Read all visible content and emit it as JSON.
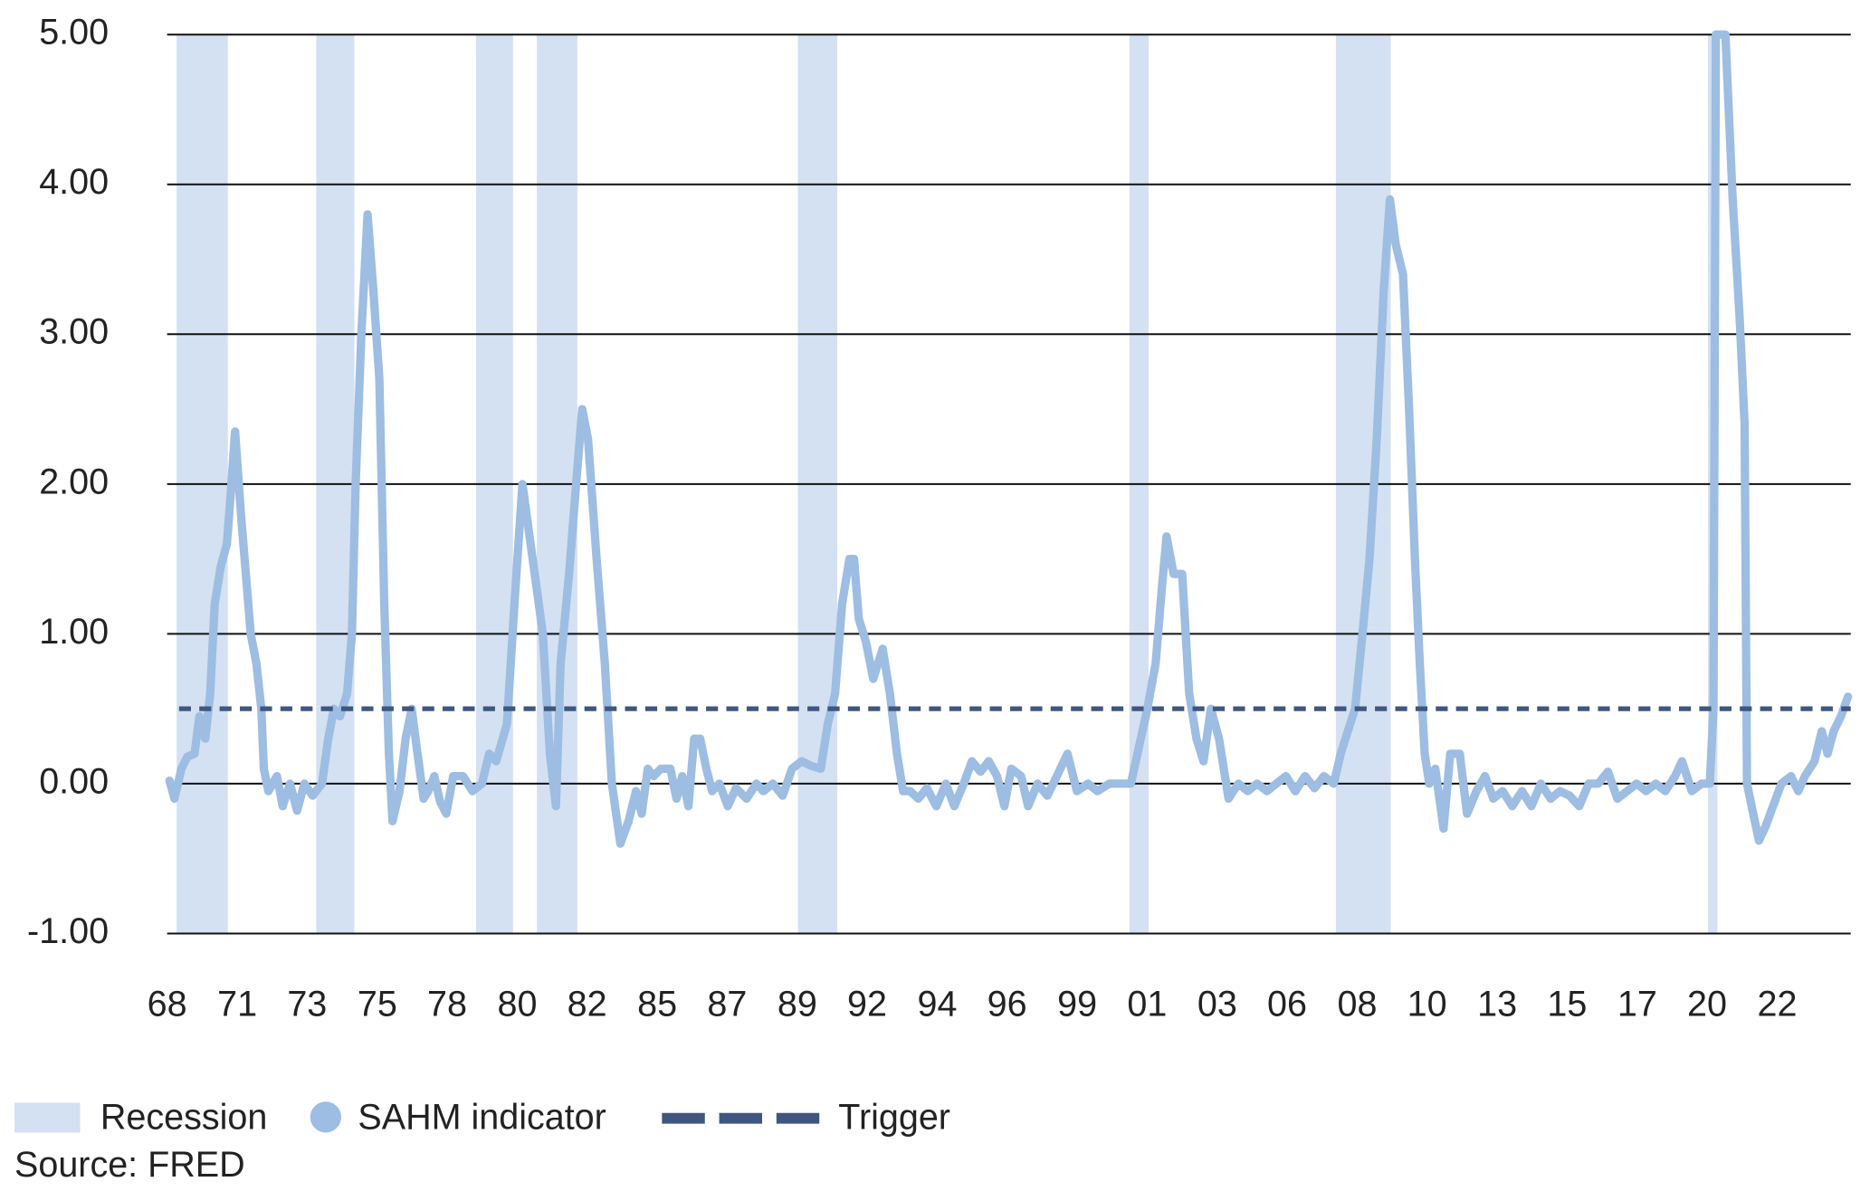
{
  "chart_data": {
    "type": "line",
    "source": "Source: FRED",
    "xlim": [
      1969.6,
      2024.8
    ],
    "ylim": [
      -1,
      5
    ],
    "yticks": [
      {
        "value": -1,
        "label": "-1.00"
      },
      {
        "value": 0,
        "label": "0.00"
      },
      {
        "value": 1,
        "label": "1.00"
      },
      {
        "value": 2,
        "label": "2.00"
      },
      {
        "value": 3,
        "label": "3.00"
      },
      {
        "value": 4,
        "label": "4.00"
      },
      {
        "value": 5,
        "label": "5.00"
      }
    ],
    "xticks": [
      {
        "value": 1969.6,
        "label": "68"
      },
      {
        "value": 1971.9,
        "label": "71"
      },
      {
        "value": 1974.19,
        "label": "73"
      },
      {
        "value": 1976.49,
        "label": "75"
      },
      {
        "value": 1978.78,
        "label": "78"
      },
      {
        "value": 1981.08,
        "label": "80"
      },
      {
        "value": 1983.37,
        "label": "82"
      },
      {
        "value": 1985.67,
        "label": "85"
      },
      {
        "value": 1987.96,
        "label": "87"
      },
      {
        "value": 1990.26,
        "label": "89"
      },
      {
        "value": 1992.55,
        "label": "92"
      },
      {
        "value": 1994.85,
        "label": "94"
      },
      {
        "value": 1997.14,
        "label": "96"
      },
      {
        "value": 1999.44,
        "label": "99"
      },
      {
        "value": 2001.73,
        "label": "01"
      },
      {
        "value": 2004.03,
        "label": "03"
      },
      {
        "value": 2006.32,
        "label": "06"
      },
      {
        "value": 2008.62,
        "label": "08"
      },
      {
        "value": 2010.91,
        "label": "10"
      },
      {
        "value": 2013.21,
        "label": "13"
      },
      {
        "value": 2015.5,
        "label": "15"
      },
      {
        "value": 2017.8,
        "label": "17"
      },
      {
        "value": 2020.09,
        "label": "20"
      },
      {
        "value": 2022.39,
        "label": "22"
      }
    ],
    "grid": true,
    "recession": {
      "name": "Recession",
      "color": "#d4e1f2",
      "periods": [
        [
          1969.91,
          1971.59
        ],
        [
          1974.49,
          1975.74
        ],
        [
          1979.73,
          1980.94
        ],
        [
          1981.72,
          1983.05
        ],
        [
          1990.28,
          1991.57
        ],
        [
          2001.15,
          2001.78
        ],
        [
          2007.92,
          2009.72
        ],
        [
          2020.12,
          2020.43
        ]
      ]
    },
    "trigger": {
      "name": "Trigger",
      "value": 0.5,
      "color": "#3f5680"
    },
    "x": [
      1969.68,
      1969.84,
      1970.07,
      1970.26,
      1970.5,
      1970.66,
      1970.85,
      1971.01,
      1971.16,
      1971.36,
      1971.56,
      1971.67,
      1971.83,
      1972.02,
      1972.18,
      1972.34,
      1972.53,
      1972.69,
      1972.77,
      1972.92,
      1973.2,
      1973.39,
      1973.63,
      1973.86,
      1974.1,
      1974.37,
      1974.68,
      1974.88,
      1975.07,
      1975.27,
      1975.5,
      1975.66,
      1975.78,
      1975.97,
      1976.17,
      1976.36,
      1976.56,
      1976.72,
      1976.87,
      1976.99,
      1977.22,
      1977.42,
      1977.62,
      1977.81,
      1978.01,
      1978.16,
      1978.36,
      1978.55,
      1978.75,
      1978.98,
      1979.3,
      1979.61,
      1979.92,
      1980.16,
      1980.39,
      1980.74,
      1981.02,
      1981.25,
      1981.45,
      1981.72,
      1981.92,
      1982.15,
      1982.35,
      1982.5,
      1982.78,
      1983.01,
      1983.21,
      1983.4,
      1983.68,
      1983.95,
      1984.18,
      1984.46,
      1984.73,
      1984.97,
      1985.16,
      1985.36,
      1985.55,
      1985.79,
      1986.1,
      1986.3,
      1986.49,
      1986.69,
      1986.88,
      1987.08,
      1987.28,
      1987.47,
      1987.71,
      1987.98,
      1988.25,
      1988.6,
      1988.92,
      1989.15,
      1989.46,
      1989.78,
      1990.09,
      1990.4,
      1990.71,
      1991.03,
      1991.26,
      1991.5,
      1991.73,
      1991.97,
      1992.12,
      1992.28,
      1992.51,
      1992.75,
      1993.06,
      1993.3,
      1993.53,
      1993.73,
      1993.96,
      1994.23,
      1994.51,
      1994.82,
      1995.13,
      1995.41,
      1995.72,
      1995.99,
      1996.27,
      1996.54,
      1996.81,
      1997.05,
      1997.28,
      1997.6,
      1997.83,
      1998.14,
      1998.46,
      1998.77,
      1999.12,
      1999.43,
      1999.79,
      2000.1,
      2000.49,
      2000.88,
      2001.2,
      2001.47,
      2001.74,
      2002.01,
      2002.21,
      2002.37,
      2002.6,
      2002.88,
      2003.11,
      2003.35,
      2003.58,
      2003.82,
      2004.09,
      2004.4,
      2004.72,
      2005.03,
      2005.34,
      2005.66,
      2005.97,
      2006.28,
      2006.59,
      2006.91,
      2007.22,
      2007.53,
      2007.85,
      2008.08,
      2008.31,
      2008.55,
      2008.79,
      2009.02,
      2009.26,
      2009.49,
      2009.69,
      2009.88,
      2010.12,
      2010.32,
      2010.51,
      2010.67,
      2010.83,
      2010.98,
      2011.18,
      2011.45,
      2011.67,
      2011.98,
      2012.22,
      2012.53,
      2012.81,
      2013.08,
      2013.39,
      2013.7,
      2014.02,
      2014.33,
      2014.64,
      2014.96,
      2015.27,
      2015.58,
      2015.9,
      2016.21,
      2016.52,
      2016.84,
      2017.15,
      2017.47,
      2017.78,
      2018.09,
      2018.41,
      2018.72,
      2019.04,
      2019.27,
      2019.59,
      2019.91,
      2020.18,
      2020.3,
      2020.38,
      2020.69,
      2020.93,
      2021.16,
      2021.32,
      2021.4,
      2021.55,
      2021.79,
      2022.02,
      2022.25,
      2022.53,
      2022.84,
      2023.08,
      2023.3,
      2023.61,
      2023.85,
      2024.04,
      2024.24,
      2024.48,
      2024.71
    ],
    "series": [
      {
        "name": "SAHM indicator",
        "color": "#9dbde2",
        "values": [
          0.02,
          -0.1,
          0.1,
          0.18,
          0.2,
          0.45,
          0.3,
          0.6,
          1.2,
          1.45,
          1.6,
          1.9,
          2.35,
          1.8,
          1.4,
          1.0,
          0.8,
          0.5,
          0.1,
          -0.05,
          0.05,
          -0.15,
          0.0,
          -0.18,
          0.0,
          -0.08,
          0.0,
          0.3,
          0.5,
          0.45,
          0.6,
          1.0,
          2.0,
          3.0,
          3.8,
          3.3,
          2.7,
          1.2,
          0.2,
          -0.25,
          -0.05,
          0.3,
          0.5,
          0.2,
          -0.1,
          -0.05,
          0.05,
          -0.12,
          -0.2,
          0.05,
          0.05,
          -0.05,
          0.0,
          0.2,
          0.15,
          0.4,
          1.3,
          2.0,
          1.7,
          1.3,
          1.0,
          0.2,
          -0.15,
          0.8,
          1.4,
          2.0,
          2.5,
          2.3,
          1.5,
          0.8,
          0.0,
          -0.4,
          -0.25,
          -0.05,
          -0.2,
          0.1,
          0.05,
          0.1,
          0.1,
          -0.1,
          0.05,
          -0.15,
          0.3,
          0.3,
          0.1,
          -0.05,
          0.0,
          -0.15,
          -0.03,
          -0.1,
          0.0,
          -0.05,
          0.0,
          -0.08,
          0.1,
          0.15,
          0.12,
          0.1,
          0.4,
          0.6,
          1.2,
          1.5,
          1.5,
          1.1,
          0.95,
          0.7,
          0.9,
          0.6,
          0.2,
          -0.05,
          -0.05,
          -0.1,
          -0.03,
          -0.15,
          0.0,
          -0.15,
          0.0,
          0.15,
          0.08,
          0.15,
          0.05,
          -0.15,
          0.1,
          0.05,
          -0.15,
          0.0,
          -0.08,
          0.05,
          0.2,
          -0.05,
          0.0,
          -0.05,
          0.0,
          0.0,
          0.0,
          0.25,
          0.5,
          0.8,
          1.3,
          1.65,
          1.4,
          1.4,
          0.6,
          0.3,
          0.15,
          0.5,
          0.3,
          -0.1,
          0.0,
          -0.05,
          0.0,
          -0.05,
          0.0,
          0.05,
          -0.05,
          0.05,
          -0.03,
          0.05,
          0.0,
          0.2,
          0.35,
          0.5,
          1.0,
          1.5,
          2.3,
          3.3,
          3.9,
          3.6,
          3.4,
          2.5,
          1.5,
          0.8,
          0.2,
          0.0,
          0.1,
          -0.3,
          0.2,
          0.2,
          -0.2,
          -0.05,
          0.05,
          -0.1,
          -0.05,
          -0.15,
          -0.05,
          -0.15,
          0.0,
          -0.1,
          -0.05,
          -0.08,
          -0.15,
          0.0,
          0.0,
          0.08,
          -0.1,
          -0.05,
          0.0,
          -0.05,
          0.0,
          -0.05,
          0.05,
          0.15,
          -0.05,
          0.0,
          0.0,
          0.5,
          5.0,
          5.0,
          3.9,
          3.1,
          2.4,
          0.0,
          -0.15,
          -0.38,
          -0.28,
          -0.15,
          0.0,
          0.05,
          -0.05,
          0.05,
          0.15,
          0.35,
          0.2,
          0.35,
          0.45,
          0.58
        ]
      }
    ]
  }
}
